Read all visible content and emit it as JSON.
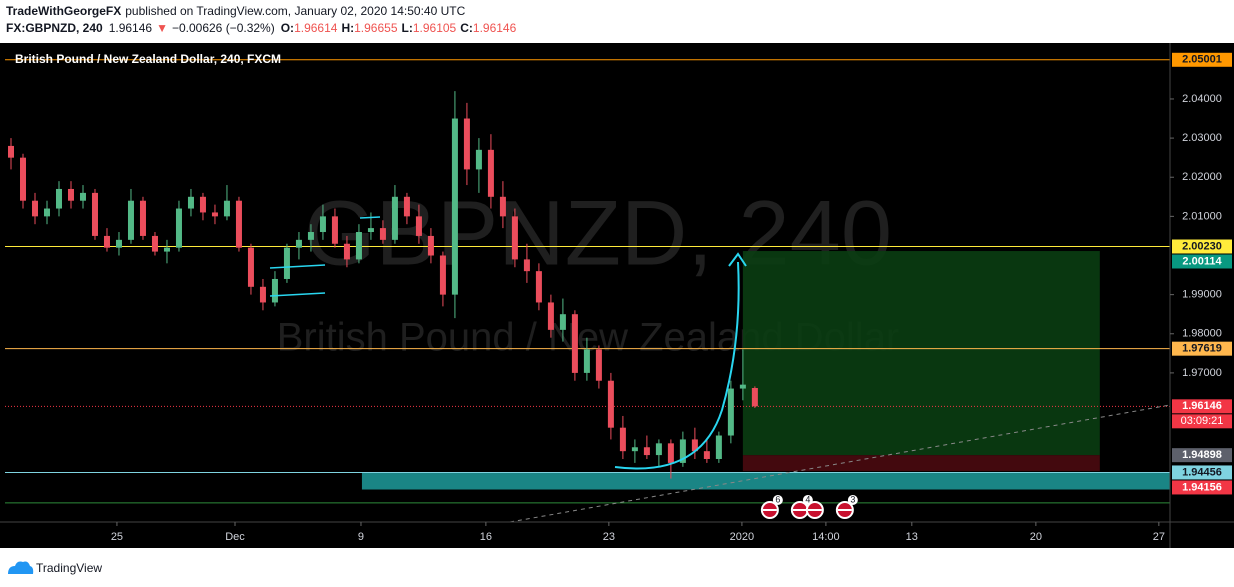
{
  "header": {
    "author": "TradeWithGeorgeFX",
    "published": "published on TradingView.com, January 02, 2020 14:50:40 UTC",
    "symbol": "FX:GBPNZD, 240",
    "last": "1.96146",
    "arrow": "▼",
    "change": "−0.00626 (−0.32%)",
    "o_label": "O:",
    "o": "1.96614",
    "h_label": "H:",
    "h": "1.96655",
    "l_label": "L:",
    "l": "1.96105",
    "c_label": "C:",
    "c": "1.96146"
  },
  "footer": {
    "brand": "TradingView"
  },
  "chart_data": {
    "type": "candlestick",
    "title": "British Pound / New Zealand Dollar, 240, FXCM",
    "watermark": "GBPNZD, 240",
    "watermark_sub": "British Pound / New Zealand Dollar",
    "up_color": "#53b987",
    "down_color": "#eb4d5c",
    "ohlc": [
      [
        2.028,
        2.03,
        2.022,
        2.025
      ],
      [
        2.025,
        2.026,
        2.012,
        2.014
      ],
      [
        2.014,
        2.016,
        2.008,
        2.01
      ],
      [
        2.01,
        2.014,
        2.008,
        2.012
      ],
      [
        2.012,
        2.019,
        2.01,
        2.017
      ],
      [
        2.017,
        2.019,
        2.012,
        2.014
      ],
      [
        2.014,
        2.018,
        2.012,
        2.016
      ],
      [
        2.016,
        2.017,
        2.004,
        2.005
      ],
      [
        2.005,
        2.007,
        2.001,
        2.002
      ],
      [
        2.002,
        2.006,
        2.0,
        2.004
      ],
      [
        2.004,
        2.017,
        2.003,
        2.014
      ],
      [
        2.014,
        2.015,
        2.004,
        2.005
      ],
      [
        2.005,
        2.006,
        2.0,
        2.001
      ],
      [
        2.001,
        2.004,
        1.998,
        2.002
      ],
      [
        2.002,
        2.014,
        2.001,
        2.012
      ],
      [
        2.012,
        2.017,
        2.01,
        2.015
      ],
      [
        2.015,
        2.016,
        2.009,
        2.011
      ],
      [
        2.011,
        2.013,
        2.008,
        2.01
      ],
      [
        2.01,
        2.018,
        2.009,
        2.014
      ],
      [
        2.014,
        2.015,
        2.001,
        2.002
      ],
      [
        2.002,
        2.003,
        1.99,
        1.992
      ],
      [
        1.992,
        1.994,
        1.986,
        1.988
      ],
      [
        1.988,
        1.996,
        1.987,
        1.994
      ],
      [
        1.994,
        2.003,
        1.993,
        2.002
      ],
      [
        2.002,
        2.006,
        1.999,
        2.004
      ],
      [
        2.004,
        2.008,
        2.001,
        2.006
      ],
      [
        2.006,
        2.013,
        2.004,
        2.01
      ],
      [
        2.01,
        2.012,
        2.002,
        2.003
      ],
      [
        2.003,
        2.005,
        1.997,
        1.999
      ],
      [
        1.999,
        2.008,
        1.998,
        2.006
      ],
      [
        2.006,
        2.011,
        2.004,
        2.007
      ],
      [
        2.007,
        2.009,
        2.003,
        2.004
      ],
      [
        2.004,
        2.018,
        2.003,
        2.015
      ],
      [
        2.015,
        2.016,
        2.008,
        2.01
      ],
      [
        2.01,
        2.013,
        2.003,
        2.005
      ],
      [
        2.005,
        2.007,
        1.998,
        2.0
      ],
      [
        2.0,
        2.001,
        1.987,
        1.99
      ],
      [
        1.99,
        2.042,
        1.984,
        2.035
      ],
      [
        2.035,
        2.039,
        2.018,
        2.022
      ],
      [
        2.022,
        2.03,
        2.016,
        2.027
      ],
      [
        2.027,
        2.031,
        2.012,
        2.015
      ],
      [
        2.015,
        2.019,
        2.007,
        2.01
      ],
      [
        2.01,
        2.012,
        1.997,
        1.999
      ],
      [
        1.999,
        2.003,
        1.993,
        1.996
      ],
      [
        1.996,
        1.998,
        1.986,
        1.988
      ],
      [
        1.988,
        1.99,
        1.979,
        1.981
      ],
      [
        1.981,
        1.989,
        1.978,
        1.985
      ],
      [
        1.985,
        1.986,
        1.968,
        1.97
      ],
      [
        1.97,
        1.979,
        1.968,
        1.976
      ],
      [
        1.976,
        1.977,
        1.966,
        1.968
      ],
      [
        1.968,
        1.97,
        1.953,
        1.956
      ],
      [
        1.956,
        1.959,
        1.948,
        1.95
      ],
      [
        1.95,
        1.953,
        1.947,
        1.951
      ],
      [
        1.951,
        1.954,
        1.948,
        1.949
      ],
      [
        1.949,
        1.953,
        1.946,
        1.952
      ],
      [
        1.952,
        1.953,
        1.943,
        1.947
      ],
      [
        1.947,
        1.955,
        1.946,
        1.953
      ],
      [
        1.953,
        1.956,
        1.948,
        1.95
      ],
      [
        1.95,
        1.953,
        1.947,
        1.948
      ],
      [
        1.948,
        1.955,
        1.947,
        1.954
      ],
      [
        1.954,
        1.968,
        1.952,
        1.966
      ],
      [
        1.966,
        1.976,
        1.963,
        1.967
      ],
      [
        1.96614,
        1.96655,
        1.96105,
        1.96146
      ]
    ],
    "xlim": [
      -0.5,
      96.6
    ],
    "ylim": [
      1.9319,
      2.0543
    ],
    "xticks": [
      {
        "value": 8.83,
        "label": "25"
      },
      {
        "value": 18.67,
        "label": "Dec"
      },
      {
        "value": 29.17,
        "label": "9"
      },
      {
        "value": 39.58,
        "label": "16"
      },
      {
        "value": 49.83,
        "label": "23"
      },
      {
        "value": 60.92,
        "label": "2020"
      },
      {
        "value": 67.92,
        "label": "14:00"
      },
      {
        "value": 75.08,
        "label": "13"
      },
      {
        "value": 85.42,
        "label": "20"
      },
      {
        "value": 95.67,
        "label": "27"
      }
    ],
    "yticks": [
      {
        "value": 2.04,
        "label": "2.04000"
      },
      {
        "value": 2.03,
        "label": "2.03000"
      },
      {
        "value": 2.02,
        "label": "2.02000"
      },
      {
        "value": 2.01,
        "label": "2.01000"
      },
      {
        "value": 1.99,
        "label": "1.99000"
      },
      {
        "value": 1.98,
        "label": "1.98000"
      },
      {
        "value": 1.97,
        "label": "1.97000"
      }
    ],
    "grid": false,
    "levels": [
      {
        "value": 2.05001,
        "label": "2.05001",
        "color": "#ff9800",
        "line": "solid"
      },
      {
        "value": 2.0023,
        "label": "2.00230",
        "color": "#ffeb3b",
        "line": "solid"
      },
      {
        "value": 2.00114,
        "label": "2.00114",
        "color": "#089981",
        "line": "none"
      },
      {
        "value": 1.97619,
        "label": "1.97619",
        "color": "#ffb74d",
        "line": "solid"
      },
      {
        "value": 1.96146,
        "label": "1.96146",
        "color": "#f23645",
        "line": "dotted"
      },
      {
        "value": 1.94898,
        "label": "1.94898",
        "color": "#5d606b",
        "line": "none"
      },
      {
        "value": 1.94456,
        "label": "1.94456",
        "color": "#7fd3e0",
        "line": "solid"
      },
      {
        "value": 1.94156,
        "label": "1.94156",
        "color": "#f23645",
        "line": "none"
      }
    ],
    "countdown": "03:09:21",
    "zone": {
      "range": [
        1.9402,
        1.94456
      ],
      "start": 29.25,
      "color": "#1e9c9c"
    },
    "support_line": {
      "value": 1.9368,
      "color": "#2e8b3a"
    },
    "position": {
      "start": 61,
      "end": 90.75,
      "target": 2.00114,
      "entry": 1.94898,
      "stop": 1.9449
    },
    "events": [
      {
        "x": 63.25,
        "label": "6"
      },
      {
        "x": 65.75,
        "label": "4"
      },
      {
        "x": 67
      },
      {
        "x": 69.5,
        "label": "3"
      }
    ]
  }
}
